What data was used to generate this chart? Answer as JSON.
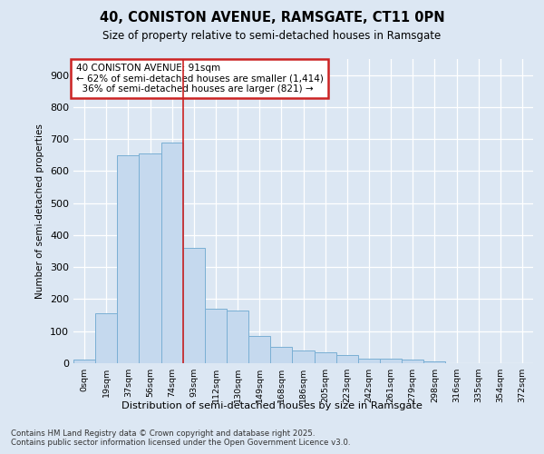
{
  "title1": "40, CONISTON AVENUE, RAMSGATE, CT11 0PN",
  "title2": "Size of property relative to semi-detached houses in Ramsgate",
  "xlabel": "Distribution of semi-detached houses by size in Ramsgate",
  "ylabel": "Number of semi-detached properties",
  "bins": [
    "0sqm",
    "19sqm",
    "37sqm",
    "56sqm",
    "74sqm",
    "93sqm",
    "112sqm",
    "130sqm",
    "149sqm",
    "168sqm",
    "186sqm",
    "205sqm",
    "223sqm",
    "242sqm",
    "261sqm",
    "279sqm",
    "298sqm",
    "316sqm",
    "335sqm",
    "354sqm",
    "372sqm"
  ],
  "values": [
    10,
    155,
    650,
    655,
    690,
    360,
    170,
    165,
    85,
    50,
    40,
    35,
    25,
    15,
    15,
    10,
    5,
    0,
    0,
    0,
    0
  ],
  "bar_color": "#c5d9ee",
  "bar_edge_color": "#7aafd4",
  "vline_x": 4.5,
  "vline_color": "#cc2222",
  "annotation_text": "40 CONISTON AVENUE: 91sqm\n← 62% of semi-detached houses are smaller (1,414)\n  36% of semi-detached houses are larger (821) →",
  "annotation_box_color": "#ffffff",
  "annotation_box_edge": "#cc2222",
  "bg_color": "#dce7f3",
  "plot_bg_color": "#dce7f3",
  "grid_color": "#ffffff",
  "footer": "Contains HM Land Registry data © Crown copyright and database right 2025.\nContains public sector information licensed under the Open Government Licence v3.0.",
  "ylim": [
    0,
    950
  ],
  "yticks": [
    0,
    100,
    200,
    300,
    400,
    500,
    600,
    700,
    800,
    900
  ]
}
